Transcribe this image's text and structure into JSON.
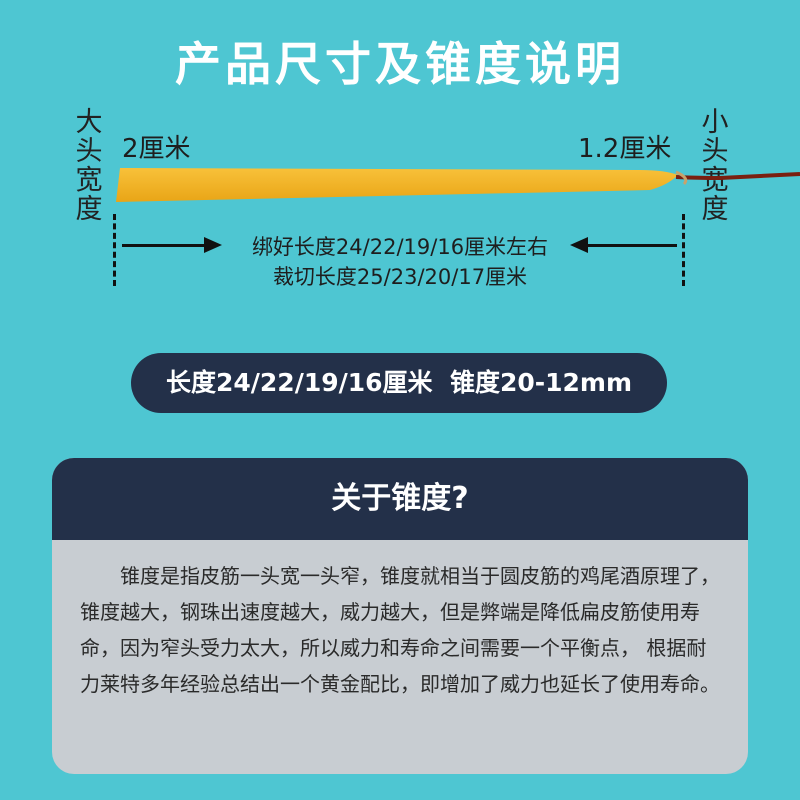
{
  "title": "产品尺寸及锥度说明",
  "diagram": {
    "big_end_vertical": "大头宽度",
    "small_end_vertical": "小头宽度",
    "big_end_width": "2厘米",
    "small_end_width": "1.2厘米",
    "tied_length": "绑好长度24/22/19/16厘米左右",
    "cut_length": "裁切长度25/23/20/17厘米",
    "colors": {
      "strip": "#f4b223",
      "string": "#7a1f10"
    }
  },
  "spec_pill": "长度24/22/19/16厘米  锥度20-12mm",
  "card": {
    "heading": "关于锥度?",
    "body": "锥度是指皮筋一头宽一头窄，锥度就相当于圆皮筋的鸡尾酒原理了，锥度越大，钢珠出速度越大，威力越大，但是弊端是降低扁皮筋使用寿命，因为窄头受力太大，所以威力和寿命之间需要一个平衡点， 根据耐力莱特多年经验总结出一个黄金配比，即增加了威力也延长了使用寿命。"
  },
  "colors": {
    "background": "#4ec6d2",
    "dark_navy": "#233049",
    "card_bg": "#c8cdd2"
  }
}
